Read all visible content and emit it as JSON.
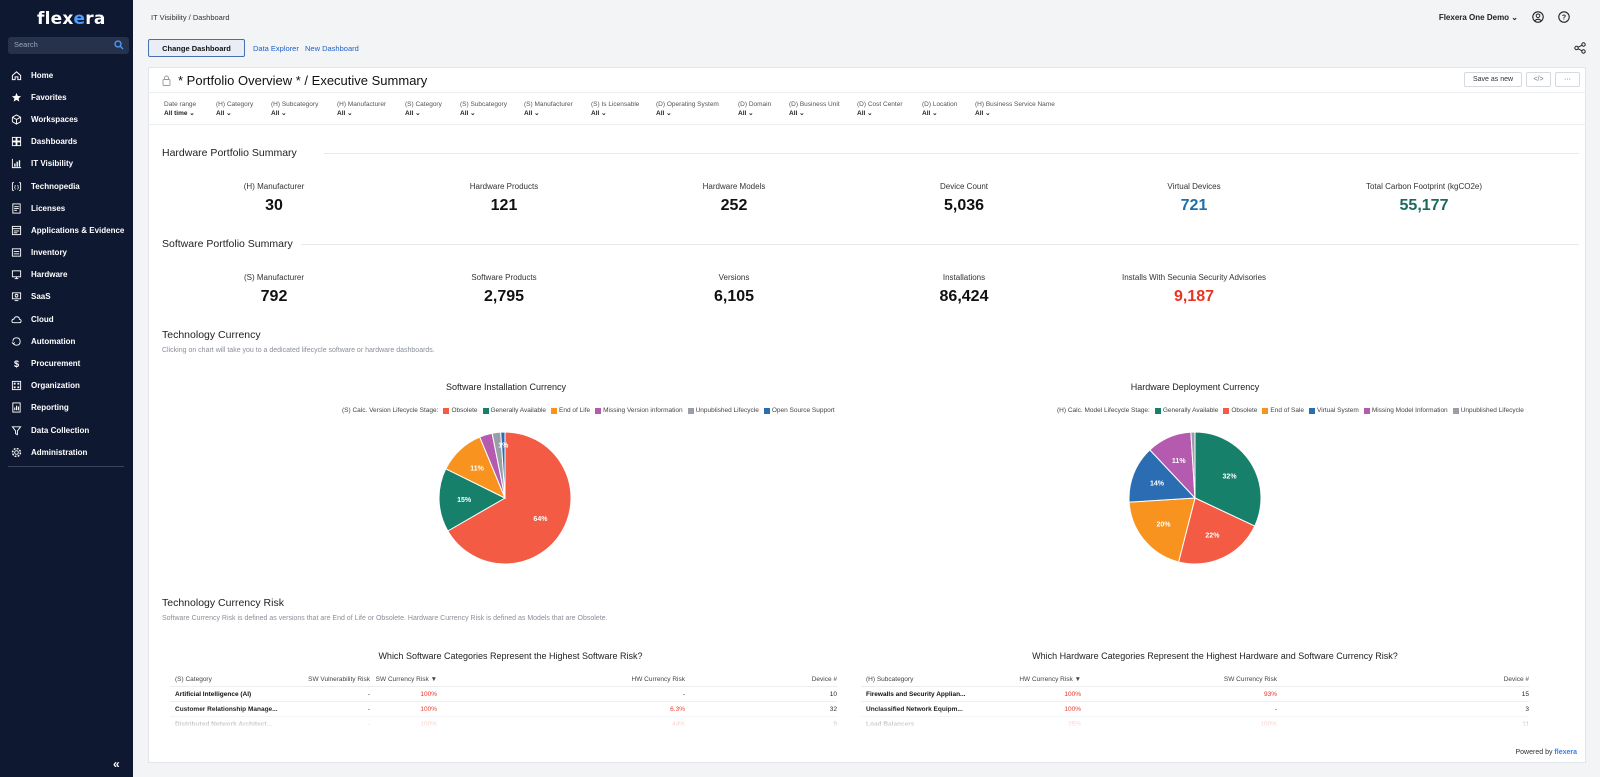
{
  "app": {
    "logo_pre": "flex",
    "logo_x": "e",
    "logo_post": "ra"
  },
  "search": {
    "placeholder": "Search",
    "icon": "search-icon"
  },
  "nav": [
    {
      "label": "Home",
      "icon": "home-icon"
    },
    {
      "label": "Favorites",
      "icon": "star-icon"
    },
    {
      "label": "Workspaces",
      "icon": "cube-icon"
    },
    {
      "label": "Dashboards",
      "icon": "dashboard-icon"
    },
    {
      "label": "IT Visibility",
      "icon": "chart-icon"
    },
    {
      "label": "Technopedia",
      "icon": "book-icon"
    },
    {
      "label": "Licenses",
      "icon": "license-icon"
    },
    {
      "label": "Applications & Evidence",
      "icon": "apps-icon"
    },
    {
      "label": "Inventory",
      "icon": "inventory-icon"
    },
    {
      "label": "Hardware",
      "icon": "hardware-icon"
    },
    {
      "label": "SaaS",
      "icon": "saas-icon"
    },
    {
      "label": "Cloud",
      "icon": "cloud-icon"
    },
    {
      "label": "Automation",
      "icon": "automation-icon"
    },
    {
      "label": "Procurement",
      "icon": "dollar-icon"
    },
    {
      "label": "Organization",
      "icon": "organization-icon"
    },
    {
      "label": "Reporting",
      "icon": "reporting-icon"
    },
    {
      "label": "Data Collection",
      "icon": "data-collection-icon"
    },
    {
      "label": "Administration",
      "icon": "gear-icon"
    }
  ],
  "header": {
    "breadcrumb": "IT Visibility / Dashboard",
    "account": "Flexera One Demo",
    "change_dashboard": "Change Dashboard",
    "data_explorer": "Data Explorer",
    "new_dashboard": "New Dashboard"
  },
  "dashboard": {
    "title": "* Portfolio Overview * / Executive Summary",
    "save_as_new": "Save as new",
    "code_btn": "</>",
    "more_btn": "···"
  },
  "filters": [
    {
      "label": "Date range",
      "value": "All time"
    },
    {
      "label": "(H) Category",
      "value": "All"
    },
    {
      "label": "(H) Subcategory",
      "value": "All"
    },
    {
      "label": "(H) Manufacturer",
      "value": "All"
    },
    {
      "label": "(S) Category",
      "value": "All"
    },
    {
      "label": "(S) Subcategory",
      "value": "All"
    },
    {
      "label": "(S) Manufacturer",
      "value": "All"
    },
    {
      "label": "(S) Is Licensable",
      "value": "All"
    },
    {
      "label": "(D) Operating System",
      "value": "All"
    },
    {
      "label": "(D) Domain",
      "value": "All"
    },
    {
      "label": "(D) Business Unit",
      "value": "All"
    },
    {
      "label": "(D) Cost Center",
      "value": "All"
    },
    {
      "label": "(D) Location",
      "value": "All"
    },
    {
      "label": "(H) Business Service Name",
      "value": "All"
    }
  ],
  "hw_summary": {
    "title": "Hardware Portfolio Summary",
    "kpis": [
      {
        "label": "(H) Manufacturer",
        "value": "30",
        "color": "#111111"
      },
      {
        "label": "Hardware Products",
        "value": "121",
        "color": "#111111"
      },
      {
        "label": "Hardware Models",
        "value": "252",
        "color": "#111111"
      },
      {
        "label": "Device Count",
        "value": "5,036",
        "color": "#111111"
      },
      {
        "label": "Virtual Devices",
        "value": "721",
        "color": "#1f6fa8"
      },
      {
        "label": "Total Carbon Footprint (kgCO2e)",
        "value": "55,177",
        "color": "#1a6b5c"
      }
    ]
  },
  "sw_summary": {
    "title": "Software Portfolio Summary",
    "kpis": [
      {
        "label": "(S) Manufacturer",
        "value": "792",
        "color": "#111111"
      },
      {
        "label": "Software Products",
        "value": "2,795",
        "color": "#111111"
      },
      {
        "label": "Versions",
        "value": "6,105",
        "color": "#111111"
      },
      {
        "label": "Installations",
        "value": "86,424",
        "color": "#111111"
      },
      {
        "label": "Installs With Secunia Security Advisories",
        "value": "9,187",
        "color": "#ea3323"
      }
    ]
  },
  "currency": {
    "title": "Technology Currency",
    "subtitle": "Clicking on chart will take you to a dedicated lifecycle software or hardware dashboards."
  },
  "chart_data": [
    {
      "type": "pie",
      "title": "Software Installation Currency",
      "legend_title": "(S) Calc. Version Lifecycle Stage:",
      "categories": [
        "Obsolete",
        "Generally Available",
        "End of Life",
        "Missing Version information",
        "Unpublished Lifecycle",
        "Open Source Support"
      ],
      "values": [
        64,
        15,
        11,
        3,
        2,
        1
      ],
      "labels": [
        "64%",
        "15%",
        "11%",
        "",
        "",
        "1%"
      ],
      "colors": [
        "#f45b45",
        "#17806b",
        "#f7931e",
        "#b45bb0",
        "#9a9ea6",
        "#2a6db3"
      ],
      "legend_placement": "top"
    },
    {
      "type": "pie",
      "title": "Hardware Deployment Currency",
      "legend_title": "(H) Calc. Model Lifecycle Stage:",
      "categories": [
        "Generally Available",
        "Obsolete",
        "End of Sale",
        "Virtual System",
        "Missing Model Information",
        "Unpublished Lifecycle"
      ],
      "values": [
        32,
        22,
        20,
        14,
        11,
        1
      ],
      "labels": [
        "32%",
        "22%",
        "20%",
        "14%",
        "11%",
        ""
      ],
      "colors": [
        "#17806b",
        "#f45b45",
        "#f7931e",
        "#2a6db3",
        "#b45bb0",
        "#9a9ea6"
      ],
      "legend_placement": "top"
    }
  ],
  "risk": {
    "title": "Technology Currency Risk",
    "subtitle": "Software Currency Risk is defined as versions that are End of Life or Obsolete.  Hardware Currency Risk is defined as Models that are Obsolete."
  },
  "sw_table": {
    "title": "Which Software Categories Represent the Highest Software Risk?",
    "headers": [
      "(S) Category",
      "SW Vulnerability Risk",
      "SW Currency Risk ▼",
      "HW Currency Risk",
      "Device #"
    ],
    "rows": [
      [
        "Artificial Intelligence (AI)",
        "-",
        "100%",
        "-",
        "10"
      ],
      [
        "Customer Relationship Manage...",
        "-",
        "100%",
        "6.3%",
        "32"
      ],
      [
        "Distributed Network Architect...",
        "-",
        "100%",
        "44%",
        "9"
      ]
    ]
  },
  "hw_table": {
    "title": "Which Hardware Categories Represent the Highest Hardware and Software Currency Risk?",
    "headers": [
      "(H) Subcategory",
      "HW Currency Risk ▼",
      "SW Currency Risk",
      "Device #"
    ],
    "rows": [
      [
        "Firewalls and Security Applian...",
        "100%",
        "93%",
        "15"
      ],
      [
        "Unclassified Network Equipm...",
        "100%",
        "-",
        "3"
      ],
      [
        "Load Balancers",
        "25%",
        "100%",
        "11"
      ]
    ]
  },
  "footer": {
    "powered": "Powered by",
    "brand": "flexera"
  }
}
